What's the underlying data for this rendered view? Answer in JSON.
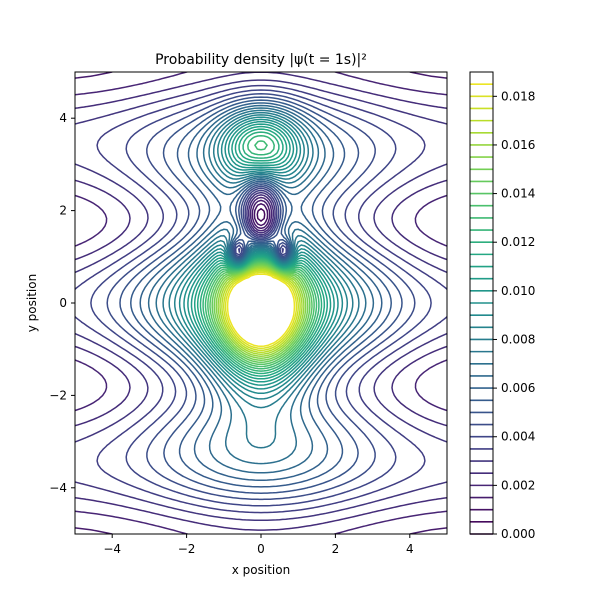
{
  "chart_data": {
    "type": "contour",
    "title": "Probability density |ψ(t = 1s)|²",
    "xlabel": "x position",
    "ylabel": "y position",
    "xlim": [
      -5,
      5
    ],
    "ylim": [
      -5,
      5
    ],
    "x_ticks": [
      -4,
      -2,
      0,
      2,
      4
    ],
    "x_tick_labels": [
      "−4",
      "−2",
      "0",
      "2",
      "4"
    ],
    "y_ticks": [
      -4,
      -2,
      0,
      2,
      4
    ],
    "y_tick_labels": [
      "−4",
      "−2",
      "0",
      "2",
      "4"
    ],
    "colormap": "viridis",
    "grid": false,
    "colorbar": {
      "min": 0.0,
      "max": 0.019,
      "level_step": 0.0005,
      "ticks": [
        0.0,
        0.002,
        0.004,
        0.006,
        0.008,
        0.01,
        0.012,
        0.014,
        0.016,
        0.018
      ],
      "tick_labels": [
        "0.000",
        "0.002",
        "0.004",
        "0.006",
        "0.008",
        "0.010",
        "0.012",
        "0.014",
        "0.016",
        "0.018"
      ]
    },
    "features": [
      {
        "kind": "maximum",
        "x": 0.0,
        "y": -0.2,
        "value": 0.0185
      },
      {
        "kind": "maximum",
        "x": 0.0,
        "y": 3.5,
        "value": 0.0175
      },
      {
        "kind": "minimum",
        "x": 0.0,
        "y": 1.9,
        "value": 0.0
      },
      {
        "kind": "minimum",
        "x": -0.6,
        "y": 1.1,
        "value": 0.0
      },
      {
        "kind": "minimum",
        "x": 0.6,
        "y": 1.1,
        "value": 0.0
      }
    ]
  }
}
